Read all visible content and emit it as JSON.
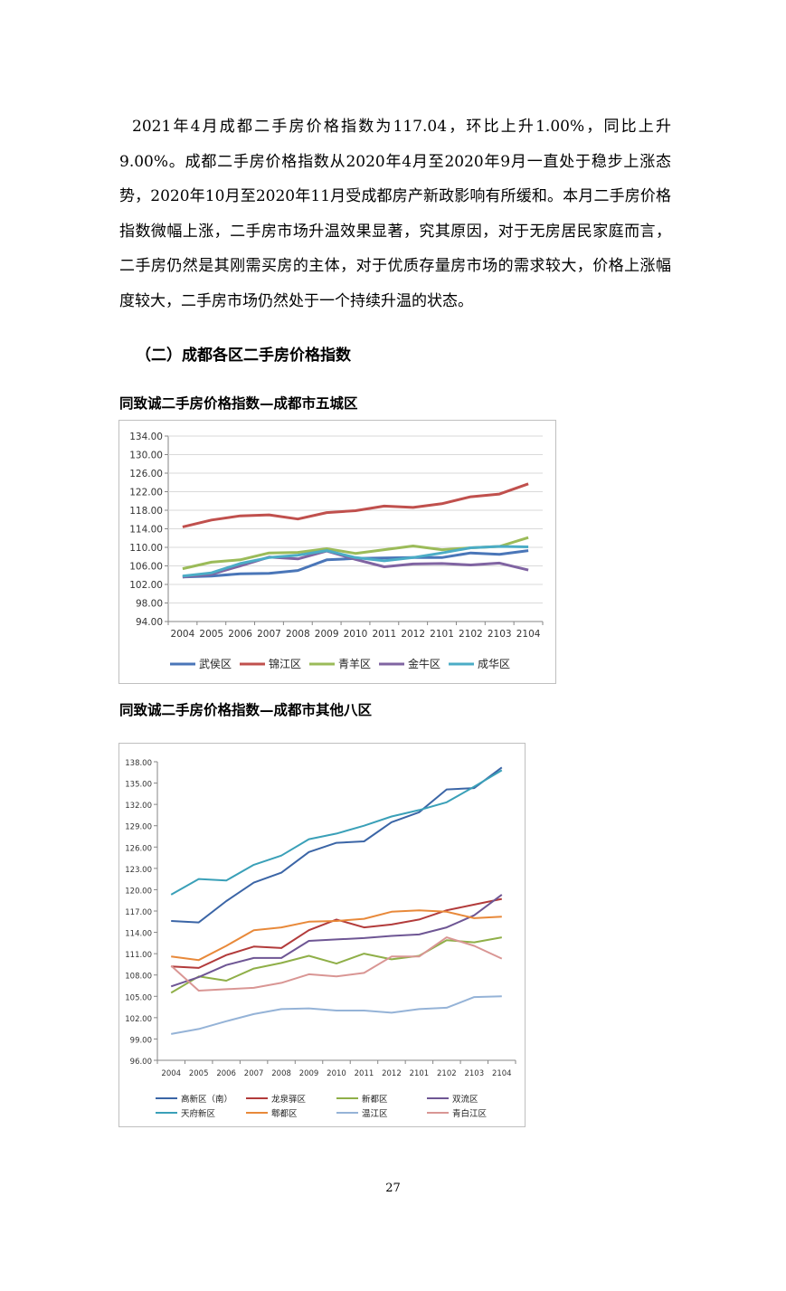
{
  "paragraph_1": "2021年4月成都二手房价格指数为117.04，环比上升1.00%，同比上升9.00%。成都二手房价格指数从2020年4月至2020年9月一直处于稳步上涨态势，2020年10月至2020年11月受成都房产新政影响有所缓和。本月二手房价格指数微幅上涨，二手房市场升温效果显著，究其原因，对于无房居民家庭而言，二手房仍然是其刚需买房的主体，对于优质存量房市场的需求较大，价格上涨幅度较大，二手房市场仍然处于一个持续升温的状态。",
  "section_heading": "（二）成都各区二手房价格指数",
  "chart1_title": "同致诚二手房价格指数—成都市五城区",
  "chart2_title": "同致诚二手房价格指数—成都市其他八区",
  "page_number": "27",
  "chart_data": [
    {
      "type": "line",
      "title": "",
      "categories": [
        "2004",
        "2005",
        "2006",
        "2007",
        "2008",
        "2009",
        "2010",
        "2011",
        "2012",
        "2101",
        "2102",
        "2103",
        "2104"
      ],
      "ylim": [
        94,
        134
      ],
      "yticks": [
        "94.00",
        "98.00",
        "102.00",
        "106.00",
        "110.00",
        "114.00",
        "118.00",
        "122.00",
        "126.00",
        "130.00",
        "134.00"
      ],
      "grid": true,
      "legend_position": "bottom",
      "series": [
        {
          "name": "武侯区",
          "color": "#4a76b8",
          "values": [
            103.6,
            103.8,
            104.3,
            104.4,
            105.0,
            107.3,
            107.6,
            107.7,
            107.8,
            107.8,
            108.8,
            108.5,
            109.3
          ]
        },
        {
          "name": "锦江区",
          "color": "#c0504d",
          "values": [
            114.4,
            115.9,
            116.8,
            117.0,
            116.1,
            117.5,
            117.9,
            118.9,
            118.6,
            119.4,
            120.9,
            121.5,
            123.7
          ]
        },
        {
          "name": "青羊区",
          "color": "#9bbb59",
          "values": [
            105.4,
            106.8,
            107.3,
            108.8,
            108.9,
            109.7,
            108.7,
            109.5,
            110.3,
            109.5,
            109.9,
            110.2,
            112.1
          ]
        },
        {
          "name": "金牛区",
          "color": "#8064a2",
          "values": [
            103.6,
            104.2,
            106.0,
            107.9,
            107.5,
            109.2,
            107.4,
            105.8,
            106.4,
            106.5,
            106.2,
            106.6,
            105.1
          ]
        },
        {
          "name": "成华区",
          "color": "#4bacc6",
          "values": [
            103.8,
            104.5,
            106.5,
            107.8,
            108.3,
            109.3,
            107.8,
            107.1,
            107.8,
            108.8,
            109.9,
            110.2,
            110.1
          ]
        }
      ]
    },
    {
      "type": "line",
      "title": "",
      "categories": [
        "2004",
        "2005",
        "2006",
        "2007",
        "2008",
        "2009",
        "2010",
        "2011",
        "2012",
        "2101",
        "2102",
        "2103",
        "2104"
      ],
      "ylim": [
        96,
        138
      ],
      "yticks": [
        "96.00",
        "99.00",
        "102.00",
        "105.00",
        "108.00",
        "111.00",
        "114.00",
        "117.00",
        "120.00",
        "123.00",
        "126.00",
        "129.00",
        "132.00",
        "135.00",
        "138.00"
      ],
      "grid": false,
      "legend_position": "bottom",
      "series": [
        {
          "name": "高新区（南）",
          "color": "#3b65a6",
          "values": [
            115.6,
            115.4,
            118.4,
            121.0,
            122.4,
            125.3,
            126.6,
            126.8,
            129.5,
            130.9,
            134.1,
            134.3,
            137.2
          ]
        },
        {
          "name": "龙泉驿区",
          "color": "#b23b3b",
          "values": [
            109.2,
            109.0,
            110.8,
            112.0,
            111.8,
            114.3,
            115.8,
            114.7,
            115.1,
            115.8,
            117.1,
            117.9,
            118.7
          ]
        },
        {
          "name": "新都区",
          "color": "#8faf48",
          "values": [
            105.5,
            107.8,
            107.2,
            108.9,
            109.7,
            110.7,
            109.6,
            111.0,
            110.2,
            110.7,
            112.9,
            112.6,
            113.3
          ]
        },
        {
          "name": "双流区",
          "color": "#6e5694",
          "values": [
            106.4,
            107.7,
            109.4,
            110.4,
            110.4,
            112.8,
            113.0,
            113.2,
            113.5,
            113.7,
            114.7,
            116.4,
            119.3
          ]
        },
        {
          "name": "天府新区",
          "color": "#3aa0b8",
          "values": [
            119.3,
            121.5,
            121.3,
            123.5,
            124.8,
            127.1,
            127.9,
            129.0,
            130.3,
            131.2,
            132.3,
            134.5,
            136.8
          ]
        },
        {
          "name": "郫都区",
          "color": "#e8893a",
          "values": [
            110.6,
            110.1,
            112.1,
            114.3,
            114.7,
            115.5,
            115.6,
            115.9,
            116.9,
            117.1,
            116.9,
            116.0,
            116.2
          ]
        },
        {
          "name": "温江区",
          "color": "#95b3d7",
          "values": [
            99.7,
            100.4,
            101.5,
            102.5,
            103.2,
            103.3,
            103.0,
            103.0,
            102.7,
            103.2,
            103.4,
            104.9,
            105.0
          ]
        },
        {
          "name": "青白江区",
          "color": "#d99694",
          "values": [
            109.3,
            105.8,
            106.0,
            106.2,
            106.9,
            108.1,
            107.8,
            108.3,
            110.6,
            110.6,
            113.3,
            112.1,
            110.3
          ]
        }
      ]
    }
  ]
}
